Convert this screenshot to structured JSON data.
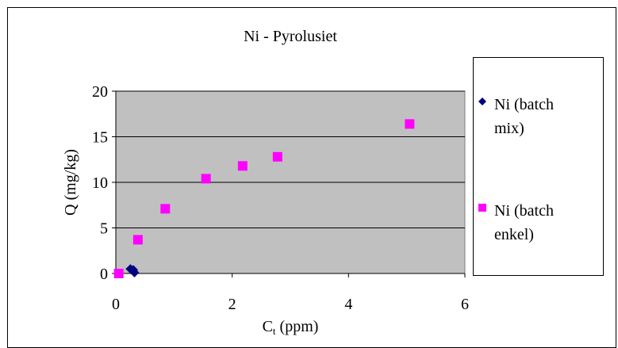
{
  "chart_data": {
    "type": "scatter",
    "title": "Ni - Pyrolusiet",
    "xlabel": {
      "main": "C",
      "sub": "t",
      "rest": " (ppm)"
    },
    "ylabel": "Q (mg/kg)",
    "xlim": [
      0,
      6
    ],
    "ylim": [
      0,
      20
    ],
    "xticks": [
      0,
      2,
      4,
      6
    ],
    "yticks": [
      0,
      5,
      10,
      15,
      20
    ],
    "grid": "horizontal",
    "plot_background": "#c0c0c0",
    "legend_placement": "right",
    "series": [
      {
        "name": "Ni (batch mix)",
        "marker": "diamond",
        "color": "#000080",
        "points": [
          {
            "x": 0.25,
            "y": 0.5
          },
          {
            "x": 0.3,
            "y": 0.4
          },
          {
            "x": 0.32,
            "y": 0.1
          }
        ]
      },
      {
        "name": "Ni (batch enkel)",
        "marker": "square",
        "color": "#ff00ff",
        "points": [
          {
            "x": 0.05,
            "y": 0.0
          },
          {
            "x": 0.38,
            "y": 3.7
          },
          {
            "x": 0.85,
            "y": 7.1
          },
          {
            "x": 1.55,
            "y": 10.4
          },
          {
            "x": 2.18,
            "y": 11.8
          },
          {
            "x": 2.78,
            "y": 12.8
          },
          {
            "x": 5.05,
            "y": 16.4
          }
        ]
      }
    ]
  },
  "legend": {
    "items": [
      {
        "line1": "Ni (batch",
        "line2": "mix)"
      },
      {
        "line1": "Ni (batch",
        "line2": "enkel)"
      }
    ]
  }
}
